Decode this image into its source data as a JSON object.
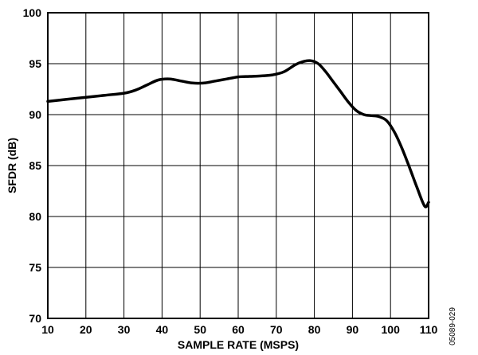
{
  "chart_data": {
    "type": "line",
    "xlabel": "SAMPLE RATE (MSPS)",
    "ylabel": "SFDR (dB)",
    "xlim": [
      10,
      110
    ],
    "ylim": [
      70,
      100
    ],
    "x_ticks": [
      10,
      20,
      30,
      40,
      50,
      60,
      70,
      80,
      90,
      100,
      110
    ],
    "y_ticks": [
      70,
      75,
      80,
      85,
      90,
      95,
      100
    ],
    "grid": true,
    "legend": "none",
    "figure_code": "05089-029",
    "series": [
      {
        "color": "#000000",
        "x": [
          10,
          15,
          20,
          25,
          30,
          33,
          36,
          39,
          42,
          45,
          48,
          51,
          54,
          57,
          60,
          63,
          66,
          69,
          72,
          75,
          77,
          79,
          81,
          83,
          85,
          87,
          89,
          91,
          93,
          95,
          97,
          99,
          101,
          103,
          105,
          107,
          109,
          110
        ],
        "y": [
          91.3,
          91.5,
          91.7,
          91.9,
          92.1,
          92.4,
          92.9,
          93.4,
          93.5,
          93.3,
          93.1,
          93.1,
          93.3,
          93.5,
          93.7,
          93.75,
          93.8,
          93.9,
          94.2,
          94.9,
          95.2,
          95.3,
          95.0,
          94.2,
          93.2,
          92.2,
          91.2,
          90.4,
          90.0,
          89.9,
          89.8,
          89.4,
          88.3,
          86.7,
          84.8,
          82.8,
          81.0,
          81.4
        ]
      }
    ]
  }
}
